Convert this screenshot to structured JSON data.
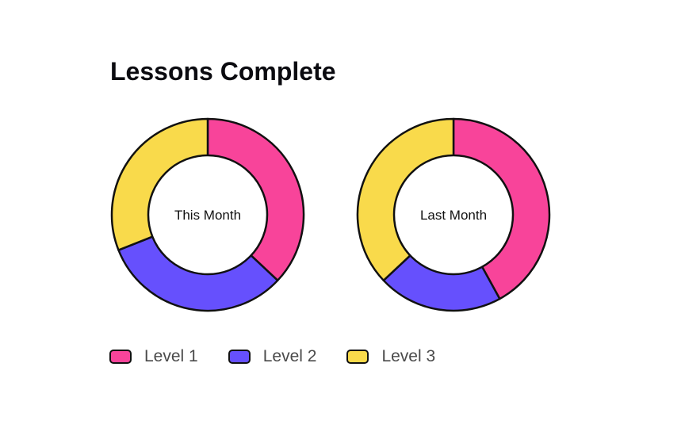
{
  "chart_data": {
    "type": "donut",
    "title": "Lessons Complete",
    "legend_position": "bottom",
    "series_names": [
      "Level 1",
      "Level 2",
      "Level 3"
    ],
    "colors": [
      "#f8449a",
      "#6650fd",
      "#f9da4b"
    ],
    "charts": [
      {
        "label": "This Month",
        "values": [
          37,
          32,
          31
        ]
      },
      {
        "label": "Last Month",
        "values": [
          42,
          21,
          37
        ]
      }
    ]
  }
}
